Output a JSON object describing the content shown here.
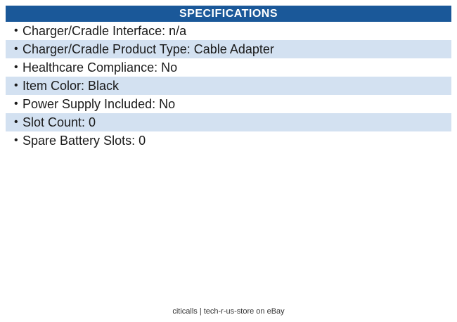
{
  "header": {
    "title": "SPECIFICATIONS"
  },
  "specs": {
    "bullet": "•",
    "items": [
      "Charger/Cradle Interface: n/a",
      "Charger/Cradle Product Type: Cable Adapter",
      "Healthcare Compliance: No",
      "Item Color: Black",
      "Power Supply Included: No",
      "Slot Count: 0",
      "Spare Battery Slots: 0"
    ]
  },
  "footer": {
    "text": "citicalls | tech-r-us-store on eBay"
  },
  "colors": {
    "header_bg": "#1A5899",
    "header_text": "#FFFFFF",
    "row_alt_bg": "#D3E1F1",
    "row_bg": "#FFFFFF",
    "text": "#1A1A1A",
    "footer_text": "#333333"
  }
}
